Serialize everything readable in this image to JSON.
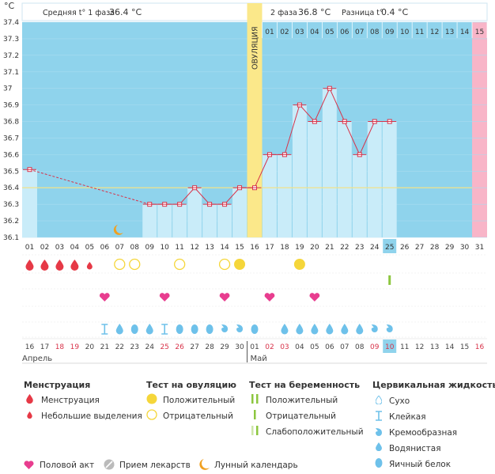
{
  "header": {
    "unit_label": "°C",
    "phase1_label": "Средняя t° 1 фаза",
    "phase1_value": "36.4 °C",
    "phase2_label": "2 фаза",
    "phase2_value": "36.8 °C",
    "diff_label": "Разница t°",
    "diff_value": "0.4 °C",
    "ovulation_label": "ОВУЛЯЦИЯ"
  },
  "colors": {
    "phase1_bg": "#8fd3ec",
    "phase2_bg": "#8fd3ec",
    "bar_fill": "#c9ecf9",
    "ovulation": "#fbe88a",
    "expected_period": "#f8b5c8",
    "today": "#8fd3ec",
    "line": "#d8334a",
    "coverline": "#f0e28a",
    "menstruation": "#e63946",
    "heart": "#e83d8f",
    "positive_test": "#f5d63a",
    "pregnancy_test": "#8cc63f",
    "cervical": "#6ec1ea",
    "moon": "#f0a020",
    "weekend_text": "#d8334a",
    "normal_text": "#444444"
  },
  "chart_data": {
    "type": "line",
    "y_ticks": [
      "37.4",
      "37.3",
      "37.2",
      "37.1",
      "37",
      "36.9",
      "36.8",
      "36.7",
      "36.6",
      "36.5",
      "36.4",
      "36.3",
      "36.2",
      "36.1"
    ],
    "ylim": [
      36.1,
      37.4
    ],
    "coverline": 36.4,
    "ovulation_day_index": 15,
    "today_index": 24,
    "day_labels": [
      "01",
      "02",
      "03",
      "04",
      "05",
      "06",
      "07",
      "08",
      "09",
      "10",
      "11",
      "12",
      "13",
      "14",
      "15",
      "16",
      "17",
      "18",
      "19",
      "20",
      "21",
      "22",
      "23",
      "24",
      "25",
      "26",
      "27",
      "28",
      "29",
      "30",
      "31"
    ],
    "phase2_day_labels": [
      "01",
      "02",
      "03",
      "04",
      "05",
      "06",
      "07",
      "08",
      "09",
      "10",
      "11",
      "12",
      "13",
      "14",
      "15"
    ],
    "temperatures": [
      36.51,
      null,
      null,
      null,
      null,
      null,
      null,
      null,
      36.3,
      36.3,
      36.3,
      36.4,
      36.3,
      36.3,
      36.4,
      36.4,
      36.6,
      36.6,
      36.9,
      36.8,
      37.0,
      36.8,
      36.6,
      36.8,
      36.8,
      null,
      null,
      null,
      null,
      null,
      null
    ],
    "dates": [
      {
        "d": "16",
        "w": false
      },
      {
        "d": "17",
        "w": false
      },
      {
        "d": "18",
        "w": true
      },
      {
        "d": "19",
        "w": true
      },
      {
        "d": "20",
        "w": false
      },
      {
        "d": "21",
        "w": false
      },
      {
        "d": "22",
        "w": false
      },
      {
        "d": "23",
        "w": false
      },
      {
        "d": "24",
        "w": false
      },
      {
        "d": "25",
        "w": true
      },
      {
        "d": "26",
        "w": true
      },
      {
        "d": "27",
        "w": false
      },
      {
        "d": "28",
        "w": false
      },
      {
        "d": "29",
        "w": false
      },
      {
        "d": "30",
        "w": false
      },
      {
        "d": "01",
        "w": false
      },
      {
        "d": "02",
        "w": true
      },
      {
        "d": "03",
        "w": true
      },
      {
        "d": "04",
        "w": false
      },
      {
        "d": "05",
        "w": false
      },
      {
        "d": "06",
        "w": false
      },
      {
        "d": "07",
        "w": false
      },
      {
        "d": "08",
        "w": false
      },
      {
        "d": "09",
        "w": true
      },
      {
        "d": "10",
        "w": true
      },
      {
        "d": "11",
        "w": false
      },
      {
        "d": "12",
        "w": false
      },
      {
        "d": "13",
        "w": false
      },
      {
        "d": "14",
        "w": false
      },
      {
        "d": "15",
        "w": false
      },
      {
        "d": "16",
        "w": true
      }
    ],
    "month1": "Апрель",
    "month2": "Май",
    "menstruation_big_days": [
      0,
      1,
      2,
      3
    ],
    "menstruation_small_days": [
      4
    ],
    "ovulation_tests": [
      {
        "day": 6,
        "result": "negative"
      },
      {
        "day": 7,
        "result": "negative"
      },
      {
        "day": 10,
        "result": "negative"
      },
      {
        "day": 13,
        "result": "negative"
      },
      {
        "day": 14,
        "result": "positive"
      },
      {
        "day": 18,
        "result": "positive"
      }
    ],
    "pregnancy_test_days": [
      24
    ],
    "intercourse_days": [
      5,
      9,
      13,
      16,
      19
    ],
    "moon_day": 6,
    "cervical": [
      {
        "day": 5,
        "type": "sticky"
      },
      {
        "day": 6,
        "type": "watery"
      },
      {
        "day": 7,
        "type": "eggwhite"
      },
      {
        "day": 8,
        "type": "watery"
      },
      {
        "day": 9,
        "type": "sticky"
      },
      {
        "day": 10,
        "type": "eggwhite"
      },
      {
        "day": 11,
        "type": "eggwhite"
      },
      {
        "day": 12,
        "type": "eggwhite"
      },
      {
        "day": 13,
        "type": "creamy"
      },
      {
        "day": 14,
        "type": "creamy"
      },
      {
        "day": 15,
        "type": "eggwhite"
      },
      {
        "day": 17,
        "type": "watery"
      },
      {
        "day": 18,
        "type": "watery"
      },
      {
        "day": 19,
        "type": "watery"
      },
      {
        "day": 20,
        "type": "watery"
      },
      {
        "day": 21,
        "type": "watery"
      },
      {
        "day": 22,
        "type": "watery"
      },
      {
        "day": 23,
        "type": "creamy"
      },
      {
        "day": 24,
        "type": "creamy"
      }
    ]
  },
  "legend": {
    "menstruation_title": "Менструация",
    "menstruation_item": "Менструация",
    "spotting_item": "Небольшие выделения",
    "ovulation_title": "Тест на овуляцию",
    "ovulation_positive": "Положительный",
    "ovulation_negative": "Отрицательный",
    "pregnancy_title": "Тест на беременность",
    "pregnancy_positive": "Положительный",
    "pregnancy_negative": "Отрицательный",
    "pregnancy_weak": "Слабоположительный",
    "cervical_title": "Цервикальная жидкость",
    "cervical_dry": "Сухо",
    "cervical_sticky": "Клейкая",
    "cervical_creamy": "Кремообразная",
    "cervical_watery": "Водянистая",
    "cervical_eggwhite": "Яичный белок",
    "intercourse": "Половой акт",
    "medication": "Прием лекарств",
    "lunar": "Лунный календарь"
  }
}
